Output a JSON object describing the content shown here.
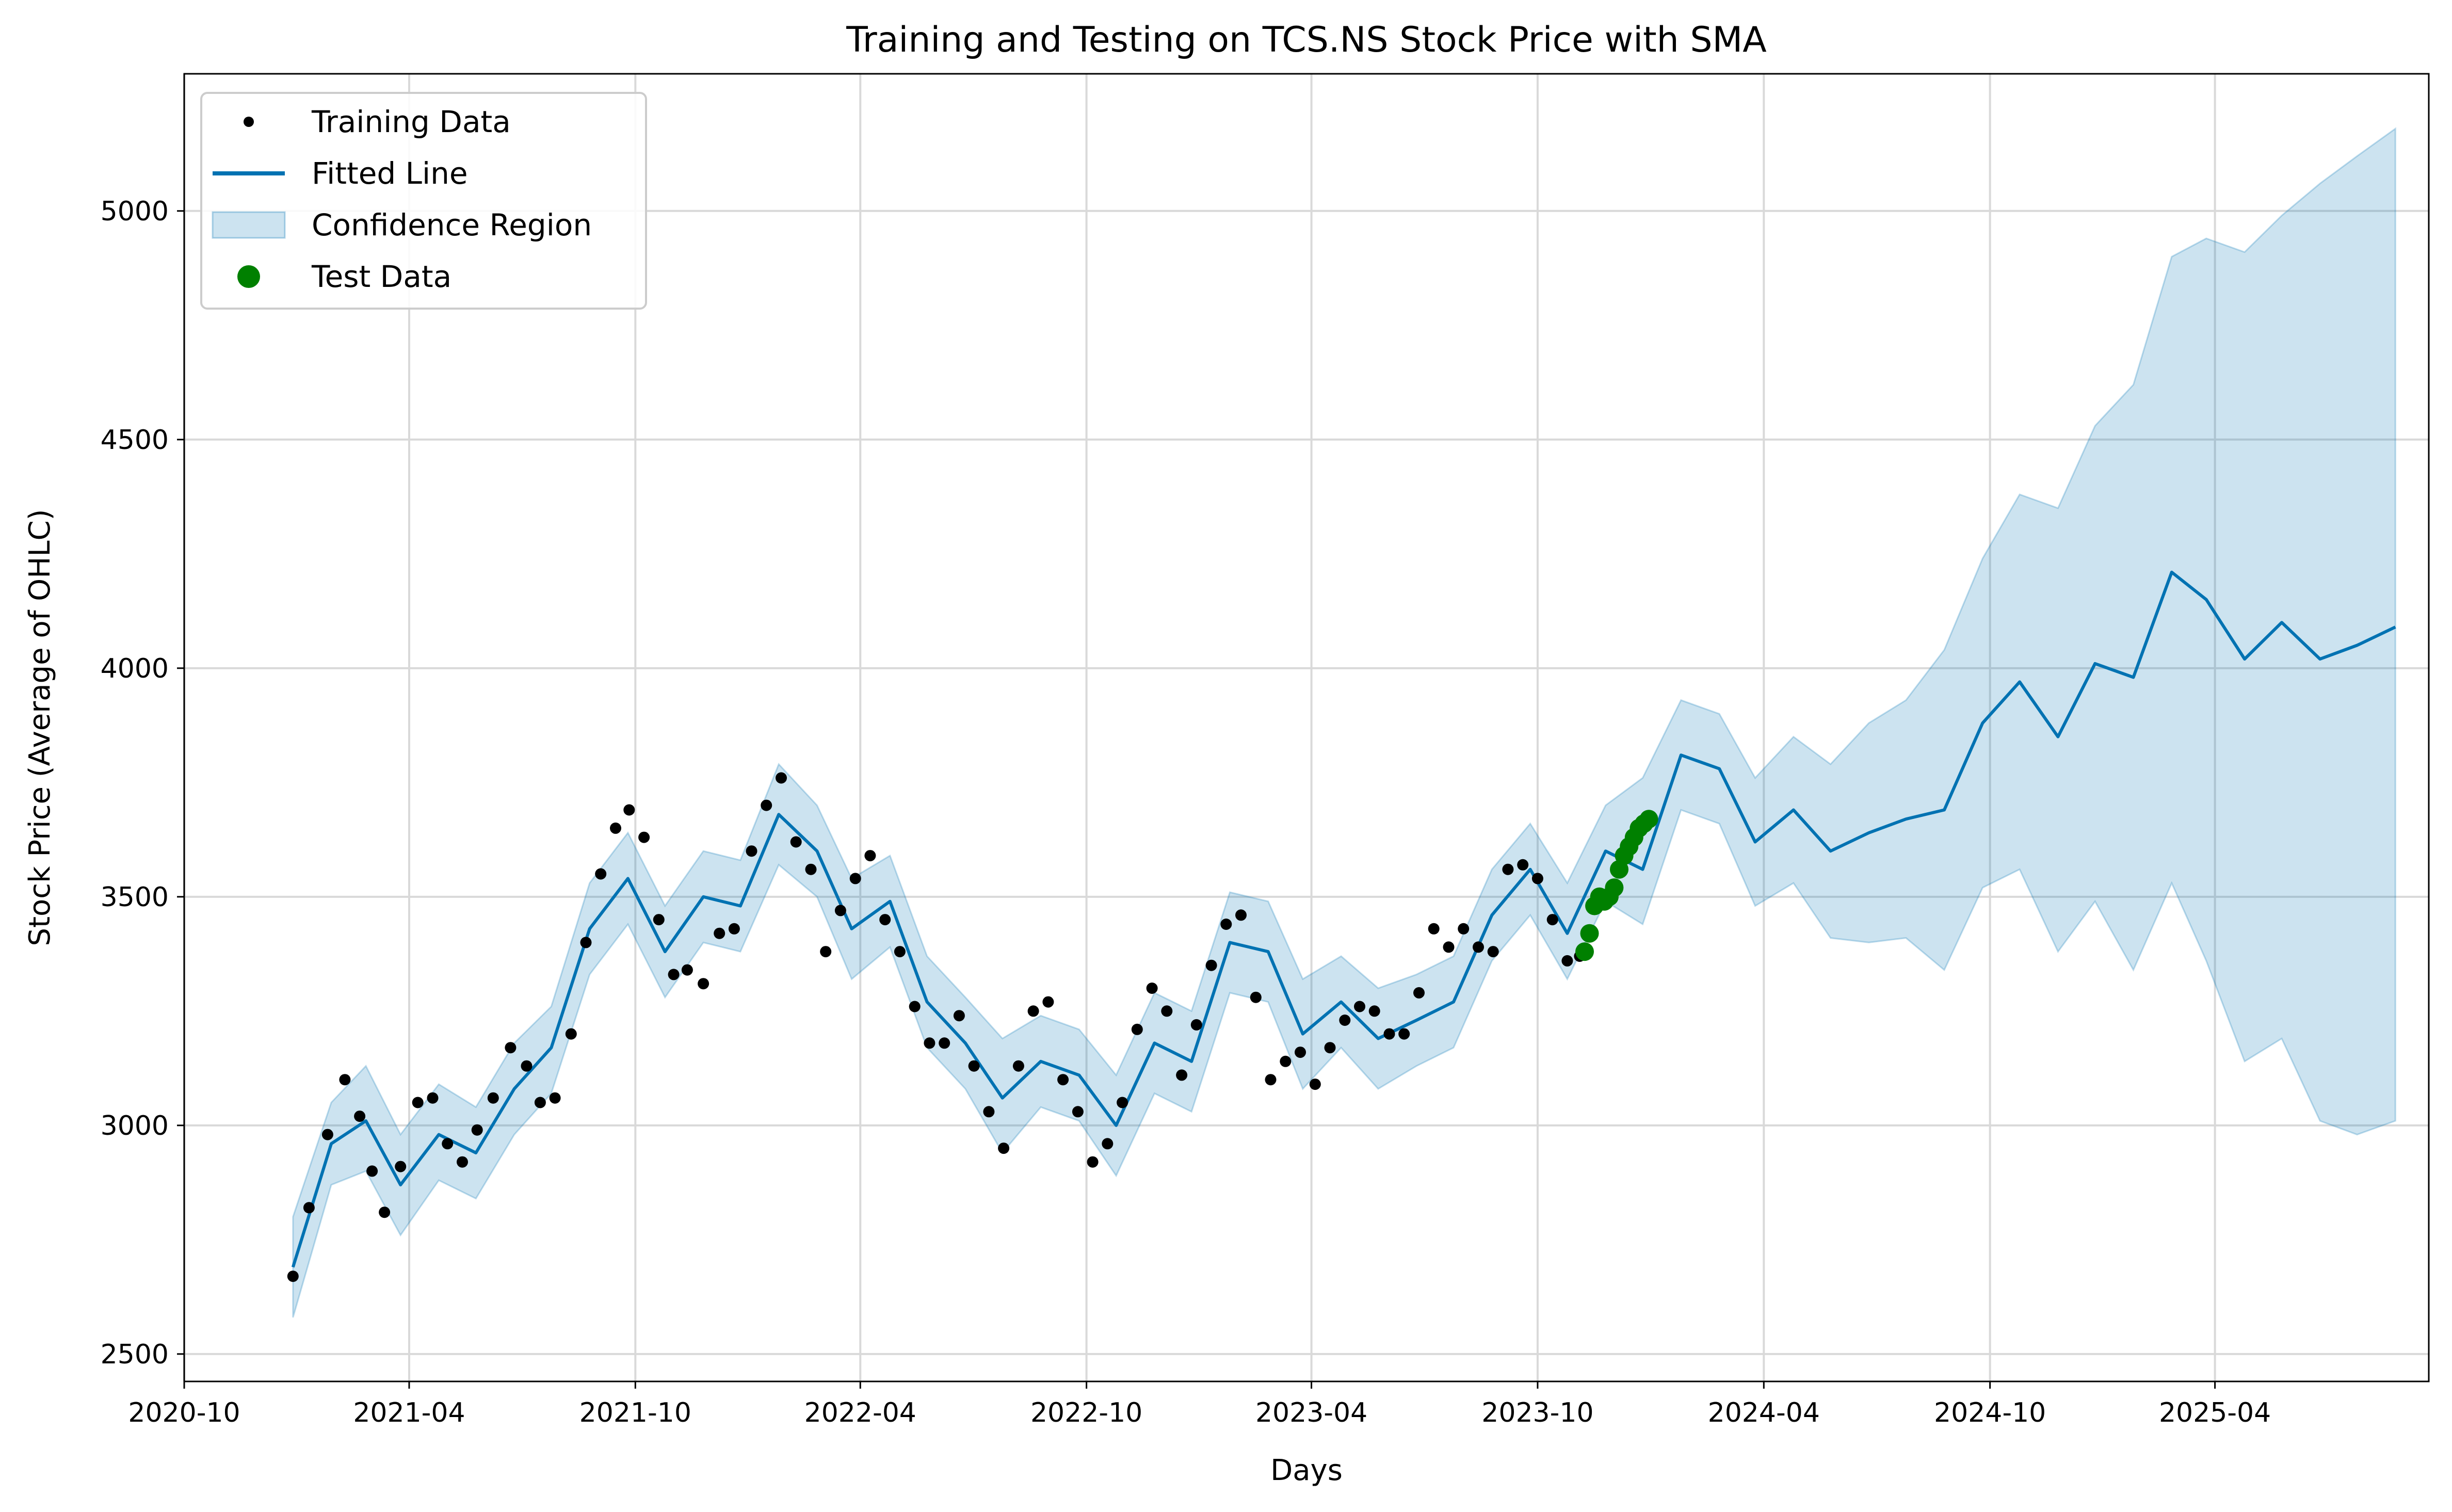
{
  "chart_data": {
    "type": "line",
    "title": "Training and Testing on TCS.NS Stock Price with SMA",
    "xlabel": "Days",
    "ylabel": "Stock Price (Average of OHLC)",
    "xlim": [
      "2020-10-01",
      "2025-09-21"
    ],
    "ylim": [
      2440,
      5300
    ],
    "x_ticks": [
      "2020-10",
      "2021-04",
      "2021-10",
      "2022-04",
      "2022-10",
      "2023-04",
      "2023-10",
      "2024-04",
      "2024-10",
      "2025-04"
    ],
    "y_ticks": [
      2500,
      3000,
      3500,
      4000,
      4500,
      5000
    ],
    "grid": true,
    "legend_placement": "upper left",
    "legend": [
      "Training Data",
      "Fitted Line",
      "Confidence Region",
      "Test Data"
    ],
    "colors": {
      "training": "#000000",
      "fitted": "#0072B2",
      "confidence_fill": "#0072B2",
      "test": "#008000",
      "grid": "#d9d9d9"
    },
    "training_data": {
      "x": [
        "2020-12-28",
        "2021-01-10",
        "2021-01-25",
        "2021-02-08",
        "2021-02-20",
        "2021-03-02",
        "2021-03-12",
        "2021-03-25",
        "2021-04-08",
        "2021-04-20",
        "2021-05-02",
        "2021-05-14",
        "2021-05-26",
        "2021-06-08",
        "2021-06-22",
        "2021-07-05",
        "2021-07-16",
        "2021-07-28",
        "2021-08-10",
        "2021-08-22",
        "2021-09-03",
        "2021-09-15",
        "2021-09-26",
        "2021-10-08",
        "2021-10-20",
        "2021-11-01",
        "2021-11-12",
        "2021-11-25",
        "2021-12-08",
        "2021-12-20",
        "2022-01-03",
        "2022-01-15",
        "2022-01-27",
        "2022-02-08",
        "2022-02-20",
        "2022-03-04",
        "2022-03-16",
        "2022-03-28",
        "2022-04-09",
        "2022-04-21",
        "2022-05-03",
        "2022-05-15",
        "2022-05-27",
        "2022-06-08",
        "2022-06-20",
        "2022-07-02",
        "2022-07-14",
        "2022-07-26",
        "2022-08-07",
        "2022-08-19",
        "2022-08-31",
        "2022-09-12",
        "2022-09-24",
        "2022-10-06",
        "2022-10-18",
        "2022-10-30",
        "2022-11-11",
        "2022-11-23",
        "2022-12-05",
        "2022-12-17",
        "2022-12-29",
        "2023-01-10",
        "2023-01-22",
        "2023-02-03",
        "2023-02-15",
        "2023-02-27",
        "2023-03-11",
        "2023-03-23",
        "2023-04-04",
        "2023-04-16",
        "2023-04-28",
        "2023-05-10",
        "2023-05-22",
        "2023-06-03",
        "2023-06-15",
        "2023-06-27",
        "2023-07-09",
        "2023-07-21",
        "2023-08-02",
        "2023-08-14",
        "2023-08-26",
        "2023-09-07",
        "2023-09-19",
        "2023-10-01",
        "2023-10-13",
        "2023-10-25",
        "2023-11-04"
      ],
      "y": [
        2670,
        2820,
        2980,
        3100,
        3020,
        2900,
        2810,
        2910,
        3050,
        3060,
        2960,
        2920,
        2990,
        3060,
        3170,
        3130,
        3050,
        3060,
        3200,
        3400,
        3550,
        3650,
        3690,
        3630,
        3450,
        3330,
        3340,
        3310,
        3420,
        3430,
        3600,
        3700,
        3760,
        3620,
        3560,
        3380,
        3470,
        3540,
        3590,
        3450,
        3380,
        3260,
        3180,
        3180,
        3240,
        3130,
        3030,
        2950,
        3130,
        3250,
        3270,
        3100,
        3030,
        2920,
        2960,
        3050,
        3210,
        3300,
        3250,
        3110,
        3220,
        3350,
        3440,
        3460,
        3280,
        3100,
        3140,
        3160,
        3090,
        3170,
        3230,
        3260,
        3250,
        3200,
        3200,
        3290,
        3430,
        3390,
        3430,
        3390,
        3380,
        3560,
        3570,
        3540,
        3450,
        3360,
        3370
      ]
    },
    "test_data": {
      "x": [
        "2023-11-08",
        "2023-11-12",
        "2023-11-16",
        "2023-11-20",
        "2023-11-24",
        "2023-11-28",
        "2023-12-02",
        "2023-12-06",
        "2023-12-10",
        "2023-12-14",
        "2023-12-18",
        "2023-12-22",
        "2023-12-26",
        "2023-12-30"
      ],
      "y": [
        3380,
        3420,
        3480,
        3500,
        3490,
        3500,
        3520,
        3560,
        3590,
        3610,
        3630,
        3650,
        3660,
        3670
      ]
    },
    "fitted_line": {
      "x": [
        "2020-12-28",
        "2021-01-28",
        "2021-02-25",
        "2021-03-25",
        "2021-04-25",
        "2021-05-25",
        "2021-06-25",
        "2021-07-25",
        "2021-08-25",
        "2021-09-25",
        "2021-10-25",
        "2021-11-25",
        "2021-12-25",
        "2022-01-25",
        "2022-02-25",
        "2022-03-25",
        "2022-04-25",
        "2022-05-25",
        "2022-06-25",
        "2022-07-25",
        "2022-08-25",
        "2022-09-25",
        "2022-10-25",
        "2022-11-25",
        "2022-12-25",
        "2023-01-25",
        "2023-02-25",
        "2023-03-25",
        "2023-04-25",
        "2023-05-25",
        "2023-06-25",
        "2023-07-25",
        "2023-08-25",
        "2023-09-25",
        "2023-10-25",
        "2023-11-25",
        "2023-12-25",
        "2024-01-25",
        "2024-02-25",
        "2024-03-25",
        "2024-04-25",
        "2024-05-25",
        "2024-06-25",
        "2024-07-25",
        "2024-08-25",
        "2024-09-25",
        "2024-10-25",
        "2024-11-25",
        "2024-12-25",
        "2025-01-25",
        "2025-02-25",
        "2025-03-25",
        "2025-04-25",
        "2025-05-25",
        "2025-06-25",
        "2025-07-25",
        "2025-08-25"
      ],
      "y": [
        2690,
        2960,
        3010,
        2870,
        2980,
        2940,
        3080,
        3170,
        3430,
        3540,
        3380,
        3500,
        3480,
        3680,
        3600,
        3430,
        3490,
        3270,
        3180,
        3060,
        3140,
        3110,
        3000,
        3180,
        3140,
        3400,
        3380,
        3200,
        3270,
        3190,
        3230,
        3270,
        3460,
        3560,
        3420,
        3600,
        3560,
        3810,
        3780,
        3620,
        3690,
        3600,
        3640,
        3670,
        3690,
        3880,
        3970,
        3850,
        4010,
        3980,
        4210,
        4150,
        4020,
        4100,
        4020,
        4050,
        4090
      ]
    },
    "confidence_upper": [
      2800,
      3050,
      3130,
      2980,
      3090,
      3040,
      3180,
      3260,
      3530,
      3640,
      3480,
      3600,
      3580,
      3790,
      3700,
      3540,
      3590,
      3370,
      3280,
      3190,
      3240,
      3210,
      3110,
      3290,
      3250,
      3510,
      3490,
      3320,
      3370,
      3300,
      3330,
      3370,
      3560,
      3660,
      3530,
      3700,
      3760,
      3930,
      3900,
      3760,
      3850,
      3790,
      3880,
      3930,
      4040,
      4240,
      4380,
      4350,
      4530,
      4620,
      4900,
      4940,
      4910,
      4990,
      5060,
      5120,
      5180
    ],
    "confidence_lower": [
      2580,
      2870,
      2900,
      2760,
      2880,
      2840,
      2980,
      3070,
      3330,
      3440,
      3280,
      3400,
      3380,
      3570,
      3500,
      3320,
      3390,
      3170,
      3080,
      2940,
      3040,
      3010,
      2890,
      3070,
      3030,
      3290,
      3270,
      3080,
      3170,
      3080,
      3130,
      3170,
      3360,
      3460,
      3320,
      3490,
      3440,
      3690,
      3660,
      3480,
      3530,
      3410,
      3400,
      3410,
      3340,
      3520,
      3560,
      3380,
      3490,
      3340,
      3530,
      3360,
      3140,
      3190,
      3010,
      2980,
      3010
    ]
  }
}
